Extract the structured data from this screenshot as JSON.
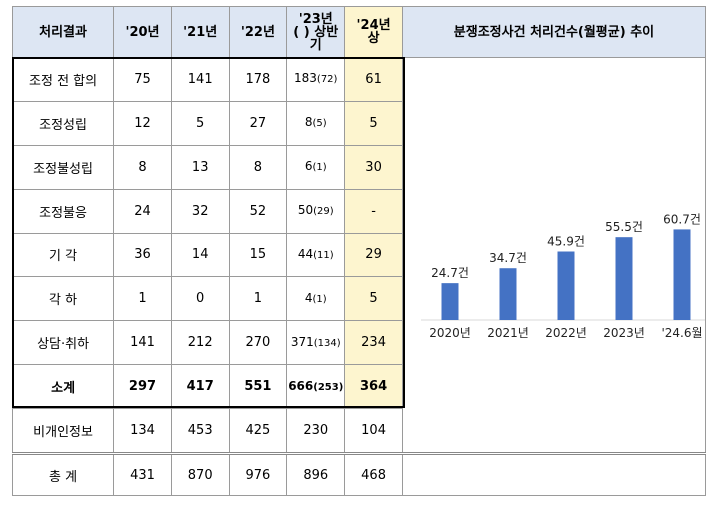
{
  "table": {
    "headers": [
      "처리결과",
      "'20년",
      "'21년",
      "'22년",
      "'23년\n( ) 상반기",
      "'24년 상"
    ],
    "header_23_line1": "'23년",
    "header_23_line2": "( ) 상반",
    "header_23_line3": "기",
    "header_24_line1": "'24년",
    "header_24_line2": "상",
    "rows": [
      {
        "label": "조정 전 합의",
        "v20": "75",
        "v21": "141",
        "v22": "178",
        "v23": "183",
        "v23sub": "(72)",
        "v24": "61"
      },
      {
        "label": "조정성립",
        "v20": "12",
        "v21": "5",
        "v22": "27",
        "v23": "8",
        "v23sub": "(5)",
        "v24": "5"
      },
      {
        "label": "조정불성립",
        "v20": "8",
        "v21": "13",
        "v22": "8",
        "v23": "6",
        "v23sub": "(1)",
        "v24": "30"
      },
      {
        "label": "조정불응",
        "v20": "24",
        "v21": "32",
        "v22": "52",
        "v23": "50",
        "v23sub": "(29)",
        "v24": "-"
      },
      {
        "label": "기 각",
        "v20": "36",
        "v21": "14",
        "v22": "15",
        "v23": "44",
        "v23sub": "(11)",
        "v24": "29"
      },
      {
        "label": "각 하",
        "v20": "1",
        "v21": "0",
        "v22": "1",
        "v23": "4",
        "v23sub": "(1)",
        "v24": "5"
      },
      {
        "label": "상담·취하",
        "v20": "141",
        "v21": "212",
        "v22": "270",
        "v23": "371",
        "v23sub": "(134)",
        "v24": "234"
      }
    ],
    "subtotal": {
      "label": "소계",
      "v20": "297",
      "v21": "417",
      "v22": "551",
      "v23": "666",
      "v23sub": "(253)",
      "v24": "364"
    },
    "nonpersonal": {
      "label": "비개인정보",
      "v20": "134",
      "v21": "453",
      "v22": "425",
      "v23": "230",
      "v24": "104"
    },
    "grand_total": {
      "label": "총 계",
      "v20": "431",
      "v21": "870",
      "v22": "976",
      "v23": "896",
      "v24": "468"
    }
  },
  "chart_panel": {
    "title": "분쟁조정사건 처리건수(월평균) 추이"
  },
  "chart_data": {
    "type": "bar",
    "title": "분쟁조정사건 처리건수(월평균) 추이",
    "categories": [
      "2020년",
      "2021년",
      "2022년",
      "2023년",
      "'24.6월"
    ],
    "values": [
      24.7,
      34.7,
      45.9,
      55.5,
      60.7
    ],
    "data_labels": [
      "24.7건",
      "34.7건",
      "45.9건",
      "55.5건",
      "60.7건"
    ],
    "bar_color": "#4472c4",
    "grid": false,
    "legend": "none",
    "ylim": [
      0,
      65
    ]
  }
}
